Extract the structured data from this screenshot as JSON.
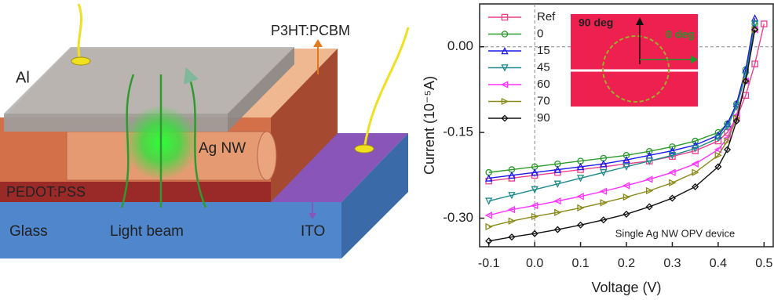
{
  "diagram": {
    "labels": [
      "P3HT:PCBM",
      "Al",
      "Ag NW",
      "PEDOT:PSS",
      "Glass",
      "Light beam",
      "ITO"
    ]
  },
  "chart_data": {
    "type": "line",
    "x_label": "Voltage (V)",
    "y_label": "Current (10⁻⁵A)",
    "annotations": [
      "90 deg",
      "0 deg",
      "Single Ag NW OPV device"
    ],
    "x": [
      -0.1,
      -0.05,
      0,
      0.05,
      0.1,
      0.15,
      0.2,
      0.25,
      0.3,
      0.35,
      0.4,
      0.42,
      0.44,
      0.46,
      0.48,
      0.5
    ],
    "xlim": [
      -0.12,
      0.52
    ],
    "xticks": [
      -0.1,
      {
        "value": 0,
        "label": "0.0"
      },
      0.1,
      0.2,
      0.3,
      0.4,
      0.5
    ],
    "ylim": [
      -0.35,
      0.075
    ],
    "yticks": [
      {
        "value": 0,
        "label": "0.00"
      },
      {
        "value": -0.15,
        "label": "-0.15"
      },
      {
        "value": -0.3,
        "label": "-0.30"
      }
    ],
    "grid": false,
    "series": [
      {
        "name": "Ref",
        "color": "#ec3f8c",
        "marker": "square",
        "values": [
          -0.235,
          -0.23,
          -0.225,
          -0.22,
          -0.215,
          -0.21,
          -0.205,
          -0.2,
          -0.192,
          -0.182,
          -0.165,
          -0.15,
          -0.125,
          -0.085,
          -0.03,
          0.04
        ]
      },
      {
        "name": "0",
        "color": "#2a9a2a",
        "marker": "circle",
        "values": [
          -0.22,
          -0.215,
          -0.21,
          -0.205,
          -0.2,
          -0.195,
          -0.19,
          -0.183,
          -0.175,
          -0.165,
          -0.15,
          -0.135,
          -0.1,
          -0.04,
          0.04,
          null
        ]
      },
      {
        "name": "15",
        "color": "#1a1aee",
        "marker": "triangle-up",
        "values": [
          -0.23,
          -0.225,
          -0.22,
          -0.215,
          -0.21,
          -0.205,
          -0.198,
          -0.19,
          -0.182,
          -0.172,
          -0.155,
          -0.135,
          -0.1,
          -0.04,
          0.05,
          null
        ]
      },
      {
        "name": "45",
        "color": "#1c8a8a",
        "marker": "triangle-down",
        "values": [
          -0.27,
          -0.26,
          -0.25,
          -0.24,
          -0.23,
          -0.22,
          -0.21,
          -0.2,
          -0.19,
          -0.178,
          -0.16,
          -0.14,
          -0.105,
          -0.05,
          0.04,
          null
        ]
      },
      {
        "name": "60",
        "color": "#ff30ff",
        "marker": "triangle-left",
        "values": [
          -0.295,
          -0.285,
          -0.278,
          -0.27,
          -0.262,
          -0.253,
          -0.243,
          -0.232,
          -0.22,
          -0.205,
          -0.18,
          -0.16,
          -0.12,
          -0.06,
          0.03,
          null
        ]
      },
      {
        "name": "70",
        "color": "#8a8a1a",
        "marker": "triangle-right",
        "values": [
          -0.315,
          -0.305,
          -0.297,
          -0.29,
          -0.282,
          -0.273,
          -0.263,
          -0.252,
          -0.238,
          -0.22,
          -0.19,
          -0.165,
          -0.125,
          -0.06,
          0.03,
          null
        ]
      },
      {
        "name": "90",
        "color": "#111111",
        "marker": "diamond",
        "values": [
          -0.34,
          -0.333,
          -0.327,
          -0.32,
          -0.312,
          -0.303,
          -0.293,
          -0.28,
          -0.265,
          -0.245,
          -0.21,
          -0.18,
          -0.13,
          -0.06,
          0.03,
          null
        ]
      }
    ]
  }
}
